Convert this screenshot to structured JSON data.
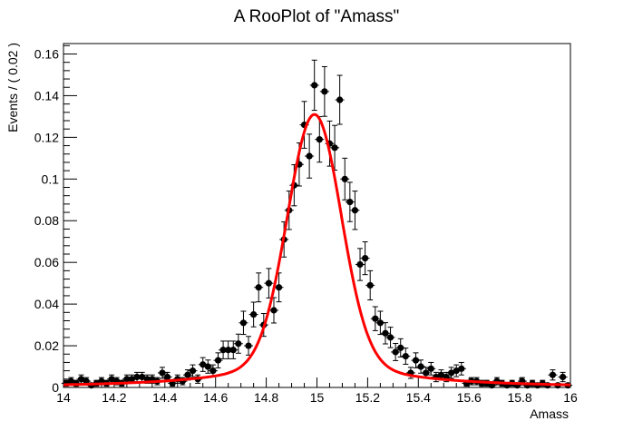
{
  "chart_data": {
    "type": "scatter",
    "title": "A RooPlot of \"Amass\"",
    "xlabel": "Amass",
    "ylabel": "Events / ( 0.02 )",
    "xlim": [
      14,
      16
    ],
    "ylim": [
      0,
      0.165
    ],
    "x_ticks": [
      "14",
      "14.2",
      "14.4",
      "14.6",
      "14.8",
      "15",
      "15.2",
      "15.4",
      "15.6",
      "15.8",
      "16"
    ],
    "y_ticks": [
      "0",
      "0.02",
      "0.04",
      "0.06",
      "0.08",
      "0.1",
      "0.12",
      "0.14",
      "0.16"
    ],
    "grid": false,
    "colors": {
      "data": "#000000",
      "fit": "#ff0000"
    },
    "series": [
      {
        "kind": "points-with-errors",
        "x": [
          14.01,
          14.03,
          14.05,
          14.07,
          14.09,
          14.11,
          14.13,
          14.15,
          14.17,
          14.19,
          14.21,
          14.23,
          14.25,
          14.27,
          14.29,
          14.31,
          14.33,
          14.35,
          14.37,
          14.39,
          14.41,
          14.43,
          14.45,
          14.47,
          14.49,
          14.51,
          14.53,
          14.55,
          14.57,
          14.59,
          14.61,
          14.63,
          14.65,
          14.67,
          14.69,
          14.71,
          14.73,
          14.75,
          14.77,
          14.79,
          14.81,
          14.83,
          14.85,
          14.87,
          14.89,
          14.91,
          14.93,
          14.95,
          14.97,
          14.99,
          15.01,
          15.03,
          15.05,
          15.07,
          15.09,
          15.11,
          15.13,
          15.15,
          15.17,
          15.19,
          15.21,
          15.23,
          15.25,
          15.27,
          15.29,
          15.31,
          15.33,
          15.35,
          15.37,
          15.39,
          15.41,
          15.43,
          15.45,
          15.47,
          15.49,
          15.51,
          15.53,
          15.55,
          15.57,
          15.59,
          15.61,
          15.63,
          15.65,
          15.67,
          15.69,
          15.71,
          15.73,
          15.75,
          15.77,
          15.79,
          15.81,
          15.83,
          15.85,
          15.87,
          15.89,
          15.91,
          15.93,
          15.95,
          15.97,
          15.99
        ],
        "y": [
          0.002,
          0.003,
          0.002,
          0.004,
          0.003,
          0.001,
          0.002,
          0.003,
          0.002,
          0.004,
          0.003,
          0.002,
          0.004,
          0.004,
          0.005,
          0.005,
          0.004,
          0.004,
          0.003,
          0.007,
          0.005,
          0.002,
          0.004,
          0.003,
          0.006,
          0.008,
          0.004,
          0.011,
          0.01,
          0.008,
          0.013,
          0.018,
          0.018,
          0.018,
          0.021,
          0.031,
          0.02,
          0.035,
          0.048,
          0.03,
          0.05,
          0.037,
          0.048,
          0.071,
          0.085,
          0.097,
          0.107,
          0.126,
          0.111,
          0.145,
          0.119,
          0.142,
          0.117,
          0.115,
          0.138,
          0.1,
          0.089,
          0.085,
          0.059,
          0.062,
          0.049,
          0.033,
          0.031,
          0.026,
          0.024,
          0.017,
          0.019,
          0.015,
          0.007,
          0.013,
          0.01,
          0.007,
          0.009,
          0.005,
          0.006,
          0.005,
          0.007,
          0.008,
          0.009,
          0.002,
          0.003,
          0.003,
          0.002,
          0.002,
          0.001,
          0.003,
          0.002,
          0.001,
          0.002,
          0.001,
          0.003,
          0.001,
          0.002,
          0.001,
          0.002,
          0.001,
          0.006,
          0.001,
          0.005,
          0.001
        ]
      },
      {
        "kind": "fit-curve",
        "peak_x": 14.99,
        "peak_y": 0.131
      }
    ]
  }
}
